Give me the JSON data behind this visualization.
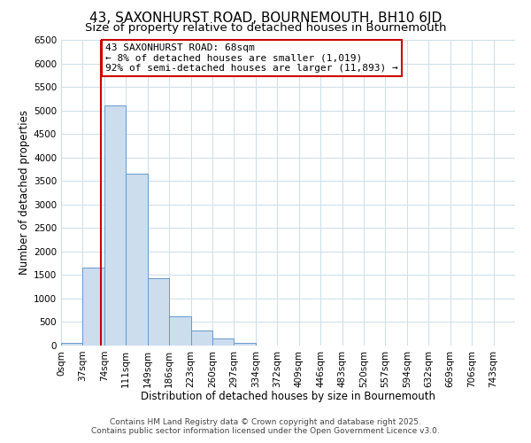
{
  "title": "43, SAXONHURST ROAD, BOURNEMOUTH, BH10 6JD",
  "subtitle": "Size of property relative to detached houses in Bournemouth",
  "xlabel": "Distribution of detached houses by size in Bournemouth",
  "ylabel": "Number of detached properties",
  "bar_labels": [
    "0sqm",
    "37sqm",
    "74sqm",
    "111sqm",
    "149sqm",
    "186sqm",
    "223sqm",
    "260sqm",
    "297sqm",
    "334sqm",
    "372sqm",
    "409sqm",
    "446sqm",
    "483sqm",
    "520sqm",
    "557sqm",
    "594sqm",
    "632sqm",
    "669sqm",
    "706sqm",
    "743sqm"
  ],
  "bar_values": [
    50,
    1650,
    5100,
    3650,
    1440,
    620,
    320,
    155,
    55,
    0,
    0,
    0,
    0,
    0,
    0,
    0,
    0,
    0,
    0,
    0,
    0
  ],
  "bar_color": "#ccdded",
  "bar_edge_color": "#6699cc",
  "ylim": [
    0,
    6500
  ],
  "yticks": [
    0,
    500,
    1000,
    1500,
    2000,
    2500,
    3000,
    3500,
    4000,
    4500,
    5000,
    5500,
    6000,
    6500
  ],
  "vertical_line_x": 68,
  "vertical_line_color": "#cc0000",
  "annotation_title": "43 SAXONHURST ROAD: 68sqm",
  "annotation_line1": "← 8% of detached houses are smaller (1,019)",
  "annotation_line2": "92% of semi-detached houses are larger (11,893) →",
  "annotation_box_color": "#cc0000",
  "annotation_box_fill": "#ffffff",
  "footer_line1": "Contains HM Land Registry data © Crown copyright and database right 2025.",
  "footer_line2": "Contains public sector information licensed under the Open Government Licence v3.0.",
  "background_color": "#ffffff",
  "grid_color": "#ccdde8",
  "title_fontsize": 11,
  "subtitle_fontsize": 9.5,
  "axis_label_fontsize": 8.5,
  "tick_fontsize": 7.5,
  "annotation_fontsize": 8,
  "footer_fontsize": 6.5,
  "bin_width": 37
}
